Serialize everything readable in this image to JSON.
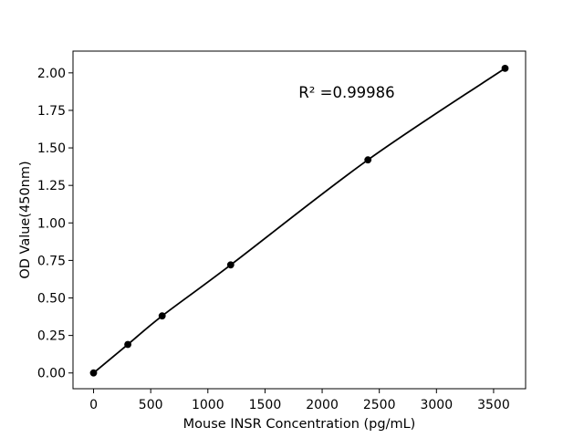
{
  "chart_data": {
    "type": "scatter",
    "title": "",
    "xlabel": "Mouse INSR Concentration (pg/mL)",
    "ylabel": "OD Value(450nm)",
    "x": [
      0,
      300,
      600,
      1200,
      2400,
      3600
    ],
    "y": [
      0.0,
      0.19,
      0.38,
      0.72,
      1.42,
      2.03
    ],
    "annotation": "R² =0.99986",
    "xticks": {
      "values": [
        0,
        500,
        1000,
        1500,
        2000,
        2500,
        3000,
        3500
      ],
      "labels": [
        "0",
        "500",
        "1000",
        "1500",
        "2000",
        "2500",
        "3000",
        "3500"
      ]
    },
    "yticks": {
      "values": [
        0.0,
        0.25,
        0.5,
        0.75,
        1.0,
        1.25,
        1.5,
        1.75,
        2.0
      ],
      "labels": [
        "0.00",
        "0.25",
        "0.50",
        "0.75",
        "1.00",
        "1.25",
        "1.50",
        "1.75",
        "2.00"
      ]
    },
    "xlim": [
      -180,
      3780
    ],
    "ylim": [
      -0.105,
      2.145
    ],
    "grid": false,
    "legend": "none",
    "colors": {
      "background": "#ffffff",
      "line": "#000000",
      "marker": "#000000",
      "spine": "#000000",
      "text": "#000000"
    }
  }
}
